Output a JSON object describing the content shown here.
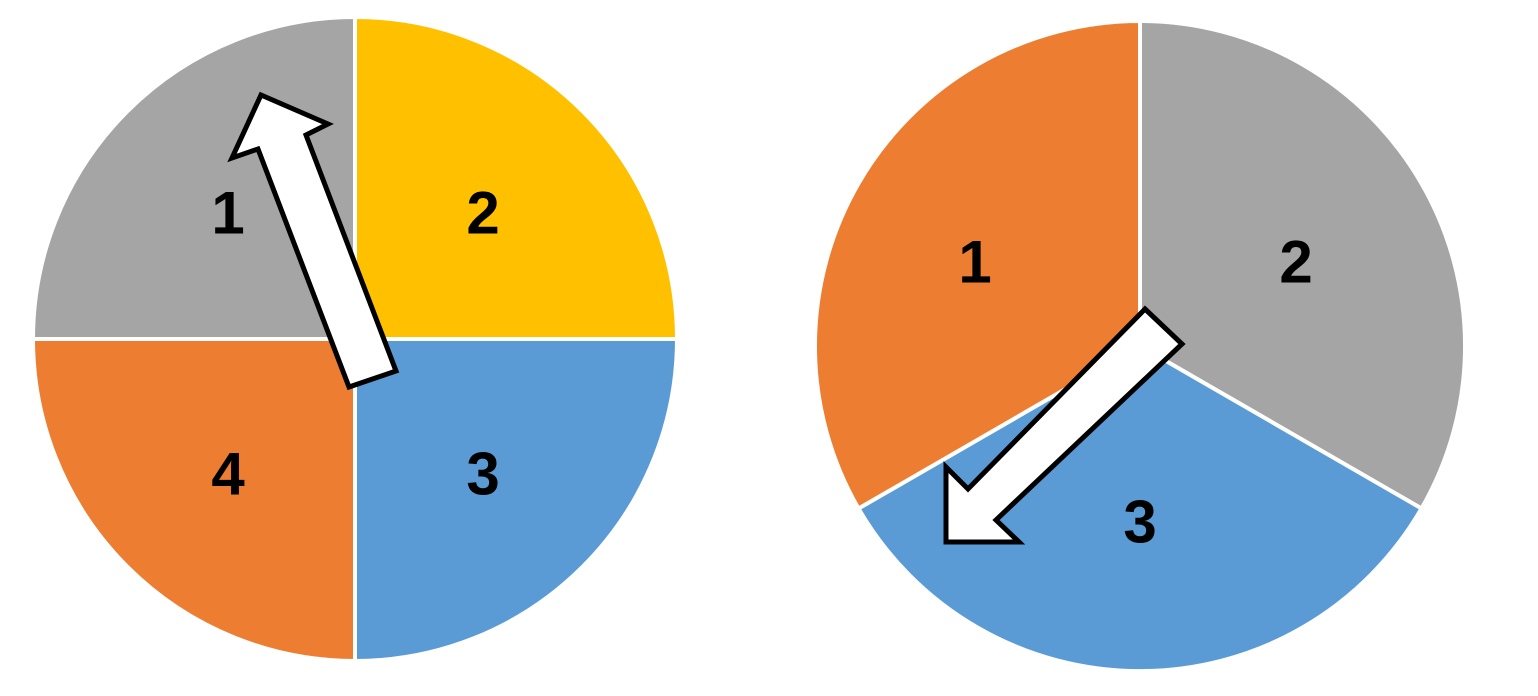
{
  "colors": {
    "background": "#ffffff",
    "slice_yellow": "#FFC000",
    "slice_blue": "#5B9BD5",
    "slice_orange": "#ED7D31",
    "slice_gray": "#A5A5A5",
    "slice_separator": "#ffffff",
    "arrow_fill": "#ffffff",
    "arrow_stroke": "#000000",
    "label_text": "#000000"
  },
  "pies": [
    {
      "name": "pie-four-slices",
      "slices": [
        {
          "label": "1",
          "value": 1,
          "color": "#FFC000"
        },
        {
          "label": "2",
          "value": 1,
          "color": "#5B9BD5"
        },
        {
          "label": "3",
          "value": 1,
          "color": "#ED7D31"
        },
        {
          "label": "4",
          "value": 1,
          "color": "#A5A5A5"
        }
      ],
      "arrow_icon": "arrow-up-left-icon"
    },
    {
      "name": "pie-three-slices",
      "slices": [
        {
          "label": "1",
          "value": 1,
          "color": "#A5A5A5"
        },
        {
          "label": "2",
          "value": 1,
          "color": "#5B9BD5"
        },
        {
          "label": "3",
          "value": 1,
          "color": "#ED7D31"
        }
      ],
      "arrow_icon": "arrow-down-left-icon"
    }
  ]
}
